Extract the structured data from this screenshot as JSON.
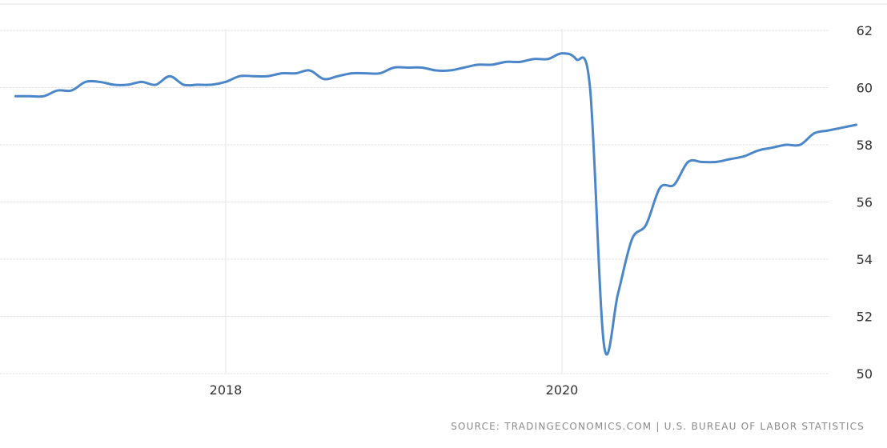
{
  "chart_data": {
    "type": "line",
    "title": "",
    "xlabel": "",
    "ylabel": "",
    "ylim": [
      50,
      62
    ],
    "yticks": [
      "50",
      "52",
      "54",
      "56",
      "58",
      "60",
      "62"
    ],
    "xticks": [
      {
        "label": "2018",
        "date": "2018-01"
      },
      {
        "label": "2020",
        "date": "2020-01"
      }
    ],
    "grid": true,
    "y_axis_side": "right",
    "line_color": "#4a86c8",
    "x": [
      "2016-10",
      "2016-11",
      "2016-12",
      "2017-01",
      "2017-02",
      "2017-03",
      "2017-04",
      "2017-05",
      "2017-06",
      "2017-07",
      "2017-08",
      "2017-09",
      "2017-10",
      "2017-11",
      "2017-12",
      "2018-01",
      "2018-02",
      "2018-03",
      "2018-04",
      "2018-05",
      "2018-06",
      "2018-07",
      "2018-08",
      "2018-09",
      "2018-10",
      "2018-11",
      "2018-12",
      "2019-01",
      "2019-02",
      "2019-03",
      "2019-04",
      "2019-05",
      "2019-06",
      "2019-07",
      "2019-08",
      "2019-09",
      "2019-10",
      "2019-11",
      "2019-12",
      "2020-01",
      "2020-02",
      "2020-03",
      "2020-04",
      "2020-05",
      "2020-06",
      "2020-07",
      "2020-08",
      "2020-09",
      "2020-10",
      "2020-11",
      "2020-12",
      "2021-01",
      "2021-02",
      "2021-03",
      "2021-04",
      "2021-05",
      "2021-06",
      "2021-07",
      "2021-08",
      "2021-09",
      "2021-10"
    ],
    "values": [
      59.7,
      59.7,
      59.7,
      59.9,
      59.9,
      60.2,
      60.2,
      60.1,
      60.1,
      60.2,
      60.1,
      60.4,
      60.1,
      60.1,
      60.1,
      60.2,
      60.4,
      60.4,
      60.4,
      60.5,
      60.5,
      60.6,
      60.3,
      60.4,
      60.5,
      60.5,
      60.5,
      60.7,
      60.7,
      60.7,
      60.6,
      60.6,
      60.7,
      60.8,
      60.8,
      60.9,
      60.9,
      61.0,
      61.0,
      61.2,
      61.0,
      60.0,
      51.0,
      52.8,
      54.7,
      55.2,
      56.5,
      56.6,
      57.4,
      57.4,
      57.4,
      57.5,
      57.6,
      57.8,
      57.9,
      58.0,
      58.0,
      58.4,
      58.5,
      58.6,
      58.7
    ]
  },
  "source": "SOURCE: TRADINGECONOMICS.COM  |  U.S. BUREAU OF LABOR STATISTICS"
}
